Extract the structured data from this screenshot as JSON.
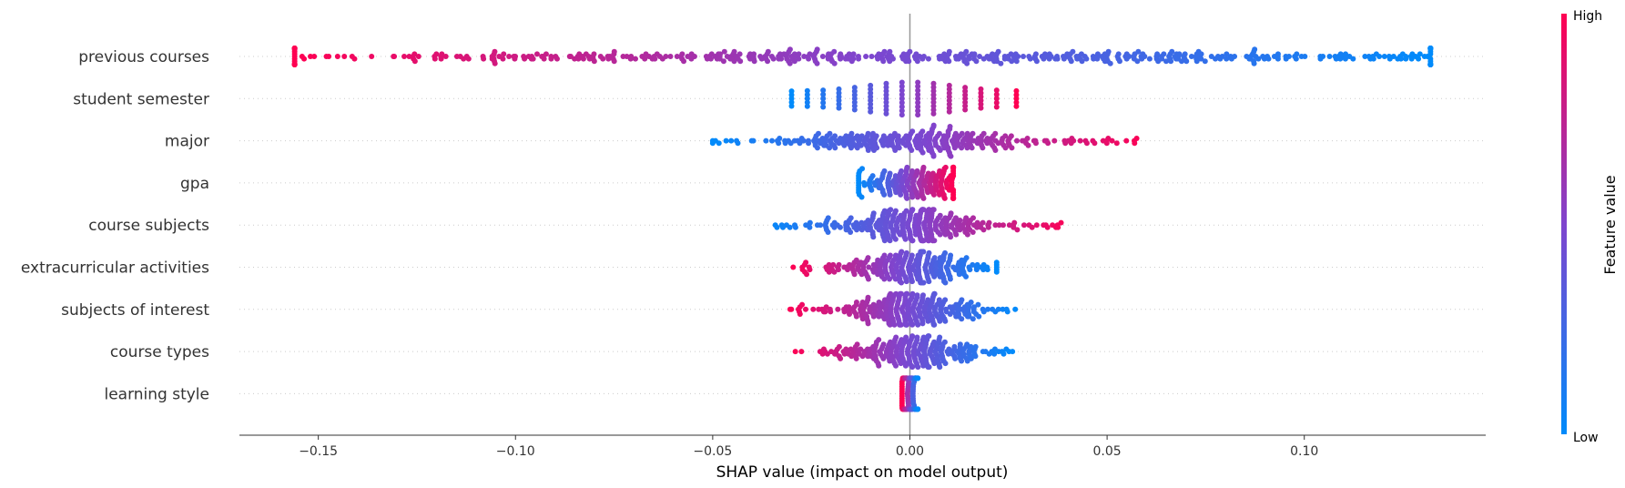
{
  "chart_data": {
    "type": "scatter",
    "subtype": "shap-beeswarm",
    "features": [
      {
        "name": "previous courses",
        "min": -0.156,
        "max": 0.132,
        "center": 0.0,
        "spread": 0.085,
        "n": 520,
        "direction": -1,
        "style": "wide"
      },
      {
        "name": "student semester",
        "min": -0.03,
        "max": 0.027,
        "center": 0.0,
        "spread": 0.02,
        "n": 0,
        "direction": 1,
        "style": "discrete",
        "levels": [
          -0.03,
          -0.026,
          -0.022,
          -0.018,
          -0.014,
          -0.01,
          -0.006,
          -0.002,
          0.002,
          0.006,
          0.01,
          0.014,
          0.018,
          0.022,
          0.027
        ]
      },
      {
        "name": "major",
        "min": -0.05,
        "max": 0.06,
        "center": 0.001,
        "spread": 0.018,
        "n": 300,
        "direction": 1,
        "style": "tailed"
      },
      {
        "name": "gpa",
        "min": -0.013,
        "max": 0.011,
        "center": 0.0,
        "spread": 0.008,
        "n": 200,
        "direction": 1,
        "style": "dense"
      },
      {
        "name": "course subjects",
        "min": -0.037,
        "max": 0.041,
        "center": 0.001,
        "spread": 0.01,
        "n": 300,
        "direction": 1,
        "style": "tailed"
      },
      {
        "name": "extracurricular activities",
        "min": -0.03,
        "max": 0.022,
        "center": 0.0,
        "spread": 0.009,
        "n": 260,
        "direction": -1,
        "style": "tailed"
      },
      {
        "name": "subjects of interest",
        "min": -0.031,
        "max": 0.027,
        "center": 0.0,
        "spread": 0.009,
        "n": 280,
        "direction": -1,
        "style": "tailed"
      },
      {
        "name": "course types",
        "min": -0.03,
        "max": 0.026,
        "center": 0.0,
        "spread": 0.009,
        "n": 250,
        "direction": -1,
        "style": "tailed"
      },
      {
        "name": "learning style",
        "min": -0.002,
        "max": 0.002,
        "center": 0.0,
        "spread": 0.0015,
        "n": 120,
        "direction": -1,
        "style": "dense"
      }
    ],
    "xlabel": "SHAP value (impact on model output)",
    "xticks": [
      -0.15,
      -0.1,
      -0.05,
      0.0,
      0.05,
      0.1
    ],
    "xtick_labels": [
      "−0.15",
      "−0.10",
      "−0.05",
      "0.00",
      "0.05",
      "0.10"
    ],
    "xlim": [
      -0.17,
      0.146
    ],
    "colorbar": {
      "label": "Feature value",
      "high_label": "High",
      "low_label": "Low",
      "high_color": "#ff0052",
      "low_color": "#008bfb"
    },
    "zero_line": true,
    "grid": false
  }
}
